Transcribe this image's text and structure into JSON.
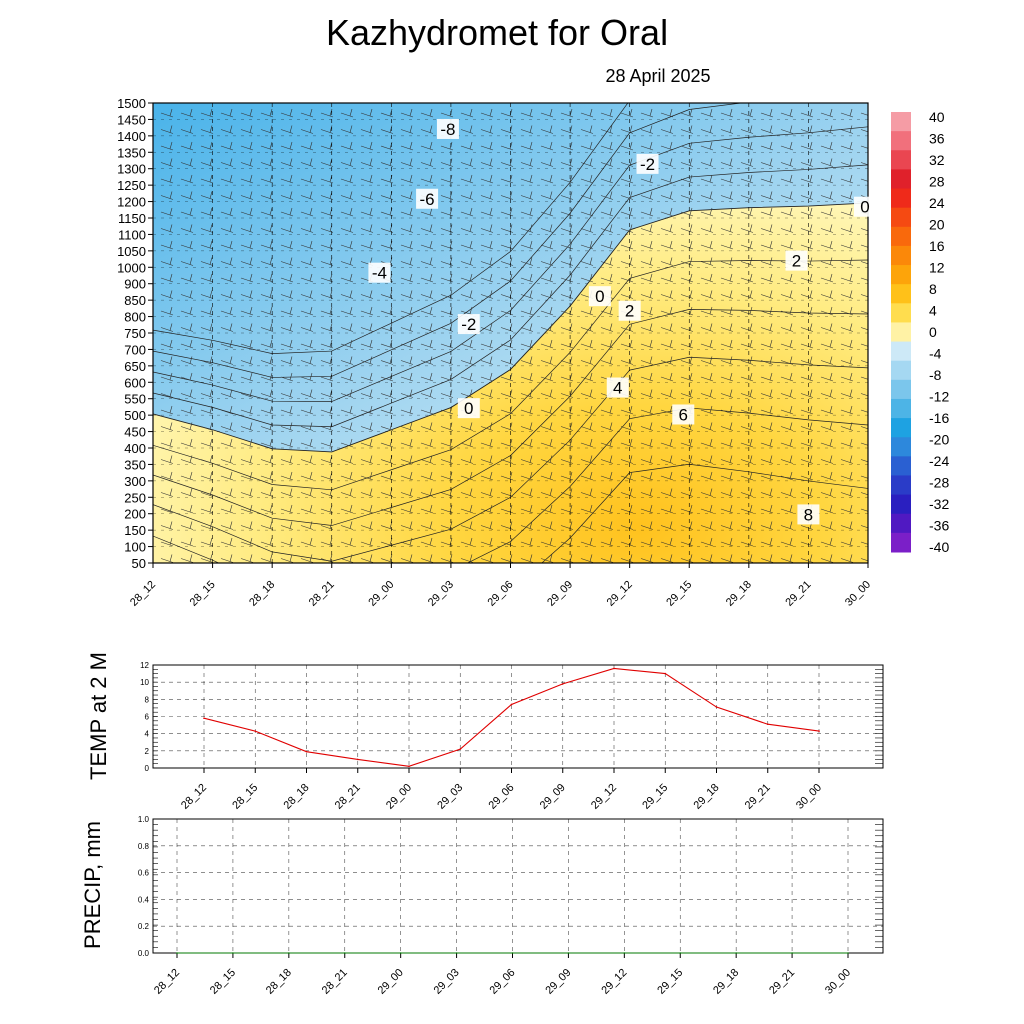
{
  "title": "Kazhydromet  for Oral",
  "subtitle": "28 April 2025",
  "colors": {
    "cold_dark": "#4fb8ec",
    "cold_light": "#cfe9f6",
    "warm_light": "#fff7b8",
    "warm_mid": "#ffe36a",
    "warm_dark": "#ffc726",
    "temp_line": "#e00000",
    "precip_line": "#007a00",
    "grid": "#000000"
  },
  "chart_data": [
    {
      "type": "heatmap",
      "xlabel": "",
      "ylabel": "",
      "x_categories": [
        "28_12",
        "28_15",
        "28_18",
        "28_21",
        "29_00",
        "29_03",
        "29_06",
        "29_09",
        "29_12",
        "29_15",
        "29_18",
        "29_21",
        "30_00"
      ],
      "y_levels": [
        50,
        100,
        150,
        200,
        250,
        300,
        350,
        400,
        450,
        500,
        550,
        600,
        650,
        700,
        750,
        800,
        850,
        900,
        1000,
        1050,
        1100,
        1150,
        1200,
        1250,
        1300,
        1350,
        1400,
        1450,
        1500
      ],
      "ylim": [
        50,
        1500
      ],
      "grid": true,
      "colorbar": {
        "labels": [
          "40",
          "36",
          "32",
          "28",
          "24",
          "20",
          "16",
          "12",
          "8",
          "4",
          "0",
          "-4",
          "-8",
          "-12",
          "-16",
          "-20",
          "-24",
          "-28",
          "-32",
          "-36",
          "-40"
        ],
        "range": [
          -40,
          40
        ],
        "placement": "right"
      },
      "contour_labels": [
        {
          "text": "-8",
          "x": 4.95,
          "y": 1415
        },
        {
          "text": "-6",
          "x": 4.6,
          "y": 1195
        },
        {
          "text": "-4",
          "x": 3.8,
          "y": 962
        },
        {
          "text": "-2",
          "x": 5.3,
          "y": 800
        },
        {
          "text": "-2",
          "x": 8.3,
          "y": 1305
        },
        {
          "text": "0",
          "x": 5.3,
          "y": 535
        },
        {
          "text": "0",
          "x": 7.5,
          "y": 888
        },
        {
          "text": "0",
          "x": 11.95,
          "y": 1170
        },
        {
          "text": "2",
          "x": 8.0,
          "y": 842
        },
        {
          "text": "2",
          "x": 10.8,
          "y": 1000
        },
        {
          "text": "4",
          "x": 7.8,
          "y": 600
        },
        {
          "text": "6",
          "x": 8.9,
          "y": 515
        },
        {
          "text": "8",
          "x": 11.0,
          "y": 200
        }
      ],
      "zero_isotherm": [
        {
          "x": 0,
          "y": 520
        },
        {
          "x": 1,
          "y": 470
        },
        {
          "x": 2,
          "y": 410
        },
        {
          "x": 3,
          "y": 400
        },
        {
          "x": 4,
          "y": 470
        },
        {
          "x": 5,
          "y": 540
        },
        {
          "x": 6,
          "y": 660
        },
        {
          "x": 7,
          "y": 860
        },
        {
          "x": 8,
          "y": 1100
        },
        {
          "x": 9,
          "y": 1160
        },
        {
          "x": 10,
          "y": 1170
        },
        {
          "x": 11,
          "y": 1175
        },
        {
          "x": 12,
          "y": 1185
        }
      ]
    },
    {
      "type": "line",
      "ylabel": "TEMP at 2 M",
      "categories": [
        "28_12",
        "28_15",
        "28_18",
        "28_21",
        "29_00",
        "29_03",
        "29_06",
        "29_09",
        "29_12",
        "29_15",
        "29_18",
        "29_21",
        "30_00"
      ],
      "yticks": [
        "0",
        "2",
        "4",
        "6",
        "8",
        "10",
        "12"
      ],
      "ylim": [
        0,
        12
      ],
      "grid": true,
      "series": [
        {
          "values": [
            5.8,
            4.3,
            1.9,
            1.0,
            0.2,
            2.2,
            7.4,
            9.8,
            11.6,
            11.0,
            7.1,
            5.1,
            4.3
          ]
        }
      ]
    },
    {
      "type": "line",
      "ylabel": "PRECIP, mm",
      "categories": [
        "28_12",
        "28_15",
        "28_18",
        "28_21",
        "29_00",
        "29_03",
        "29_06",
        "29_09",
        "29_12",
        "29_15",
        "29_18",
        "29_21",
        "30_00"
      ],
      "yticks": [
        "0.0",
        "0.2",
        "0.4",
        "0.6",
        "0.8",
        "1.0"
      ],
      "ylim": [
        0,
        1.0
      ],
      "grid": true,
      "series": [
        {
          "values": [
            0,
            0,
            0,
            0,
            0,
            0,
            0,
            0,
            0,
            0,
            0,
            0,
            0
          ]
        }
      ]
    }
  ]
}
